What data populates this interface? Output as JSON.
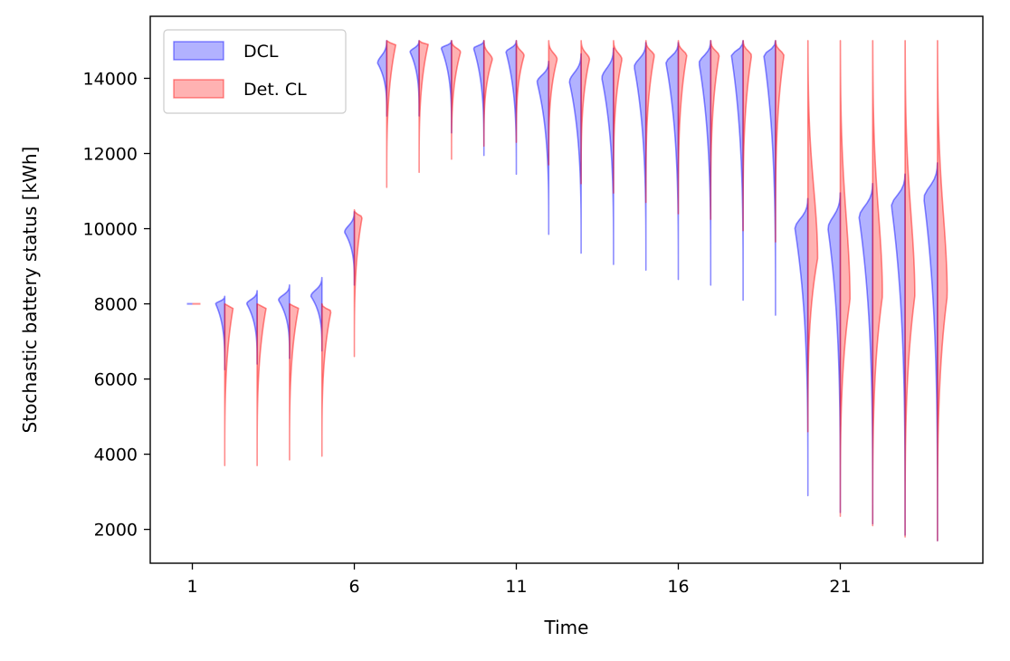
{
  "chart_data": {
    "type": "violin",
    "xlabel": "Time",
    "ylabel": "Stochastic battery status [kWh]",
    "x_ticks": [
      1,
      6,
      11,
      16,
      21
    ],
    "y_ticks": [
      2000,
      4000,
      6000,
      8000,
      10000,
      12000,
      14000
    ],
    "xlim": [
      -0.3,
      25.4
    ],
    "ylim": [
      1100,
      15650
    ],
    "legend": {
      "placement": "top-left",
      "entries": [
        "DCL",
        "Det. CL"
      ]
    },
    "grid": false,
    "colors": {
      "DCL": "#0000ff",
      "Det. CL": "#ff0000"
    },
    "series": [
      {
        "name": "DCL",
        "side": "left",
        "violins": [
          {
            "t": 1,
            "min": 8000,
            "max": 8000,
            "mode": 8000,
            "w": 0.0
          },
          {
            "t": 2,
            "min": 6250,
            "max": 8200,
            "mode": 8000,
            "w": 0.28
          },
          {
            "t": 3,
            "min": 6400,
            "max": 8350,
            "mode": 8000,
            "w": 0.32
          },
          {
            "t": 4,
            "min": 6550,
            "max": 8500,
            "mode": 8100,
            "w": 0.34
          },
          {
            "t": 5,
            "min": 6750,
            "max": 8700,
            "mode": 8200,
            "w": 0.34
          },
          {
            "t": 6,
            "min": 8500,
            "max": 10450,
            "mode": 9900,
            "w": 0.3
          },
          {
            "t": 7,
            "min": 13000,
            "max": 15000,
            "mode": 14400,
            "w": 0.28
          },
          {
            "t": 8,
            "min": 13000,
            "max": 15000,
            "mode": 14700,
            "w": 0.28
          },
          {
            "t": 9,
            "min": 12550,
            "max": 15000,
            "mode": 14800,
            "w": 0.32
          },
          {
            "t": 10,
            "min": 11950,
            "max": 15000,
            "mode": 14800,
            "w": 0.32
          },
          {
            "t": 11,
            "min": 11450,
            "max": 15000,
            "mode": 14700,
            "w": 0.32
          },
          {
            "t": 12,
            "min": 9850,
            "max": 14450,
            "mode": 13900,
            "w": 0.36
          },
          {
            "t": 13,
            "min": 9350,
            "max": 14650,
            "mode": 13900,
            "w": 0.36
          },
          {
            "t": 14,
            "min": 9050,
            "max": 14800,
            "mode": 14000,
            "w": 0.36
          },
          {
            "t": 15,
            "min": 8900,
            "max": 14950,
            "mode": 14300,
            "w": 0.36
          },
          {
            "t": 16,
            "min": 8650,
            "max": 14950,
            "mode": 14400,
            "w": 0.38
          },
          {
            "t": 17,
            "min": 8500,
            "max": 15000,
            "mode": 14400,
            "w": 0.36
          },
          {
            "t": 18,
            "min": 8100,
            "max": 15000,
            "mode": 14600,
            "w": 0.36
          },
          {
            "t": 19,
            "min": 7700,
            "max": 15000,
            "mode": 14600,
            "w": 0.36
          },
          {
            "t": 20,
            "min": 2900,
            "max": 10800,
            "mode": 10000,
            "w": 0.4
          },
          {
            "t": 21,
            "min": 2450,
            "max": 10950,
            "mode": 10000,
            "w": 0.38
          },
          {
            "t": 22,
            "min": 2150,
            "max": 11200,
            "mode": 10300,
            "w": 0.42
          },
          {
            "t": 23,
            "min": 1850,
            "max": 11450,
            "mode": 10600,
            "w": 0.42
          },
          {
            "t": 24,
            "min": 1700,
            "max": 11750,
            "mode": 10800,
            "w": 0.42
          }
        ]
      },
      {
        "name": "Det. CL",
        "side": "right",
        "violins": [
          {
            "t": 1,
            "min": 8000,
            "max": 8000,
            "mode": 8000,
            "w": 0.25
          },
          {
            "t": 2,
            "min": 3700,
            "max": 8000,
            "mode": 7900,
            "w": 0.26
          },
          {
            "t": 3,
            "min": 3700,
            "max": 8000,
            "mode": 7900,
            "w": 0.28
          },
          {
            "t": 4,
            "min": 3850,
            "max": 8000,
            "mode": 7900,
            "w": 0.28
          },
          {
            "t": 5,
            "min": 3950,
            "max": 8000,
            "mode": 7800,
            "w": 0.28
          },
          {
            "t": 6,
            "min": 6600,
            "max": 10500,
            "mode": 10300,
            "w": 0.24
          },
          {
            "t": 7,
            "min": 11100,
            "max": 15000,
            "mode": 14900,
            "w": 0.28
          },
          {
            "t": 8,
            "min": 11500,
            "max": 15000,
            "mode": 14900,
            "w": 0.28
          },
          {
            "t": 9,
            "min": 11850,
            "max": 15000,
            "mode": 14700,
            "w": 0.28
          },
          {
            "t": 10,
            "min": 12200,
            "max": 15000,
            "mode": 14500,
            "w": 0.26
          },
          {
            "t": 11,
            "min": 12300,
            "max": 15000,
            "mode": 14600,
            "w": 0.24
          },
          {
            "t": 12,
            "min": 11700,
            "max": 15000,
            "mode": 14500,
            "w": 0.26
          },
          {
            "t": 13,
            "min": 11200,
            "max": 15000,
            "mode": 14500,
            "w": 0.26
          },
          {
            "t": 14,
            "min": 10950,
            "max": 15000,
            "mode": 14500,
            "w": 0.26
          },
          {
            "t": 15,
            "min": 10700,
            "max": 15000,
            "mode": 14600,
            "w": 0.26
          },
          {
            "t": 16,
            "min": 10400,
            "max": 15000,
            "mode": 14600,
            "w": 0.26
          },
          {
            "t": 17,
            "min": 10250,
            "max": 15000,
            "mode": 14600,
            "w": 0.26
          },
          {
            "t": 18,
            "min": 9950,
            "max": 15000,
            "mode": 14600,
            "w": 0.26
          },
          {
            "t": 19,
            "min": 9650,
            "max": 15000,
            "mode": 14600,
            "w": 0.26
          },
          {
            "t": 20,
            "min": 4600,
            "max": 15000,
            "mode": 9200,
            "w": 0.3
          },
          {
            "t": 21,
            "min": 2350,
            "max": 15000,
            "mode": 8100,
            "w": 0.3
          },
          {
            "t": 22,
            "min": 2100,
            "max": 15000,
            "mode": 8200,
            "w": 0.3
          },
          {
            "t": 23,
            "min": 1800,
            "max": 15000,
            "mode": 8200,
            "w": 0.3
          },
          {
            "t": 24,
            "min": 1700,
            "max": 15000,
            "mode": 8200,
            "w": 0.3
          }
        ]
      }
    ]
  }
}
